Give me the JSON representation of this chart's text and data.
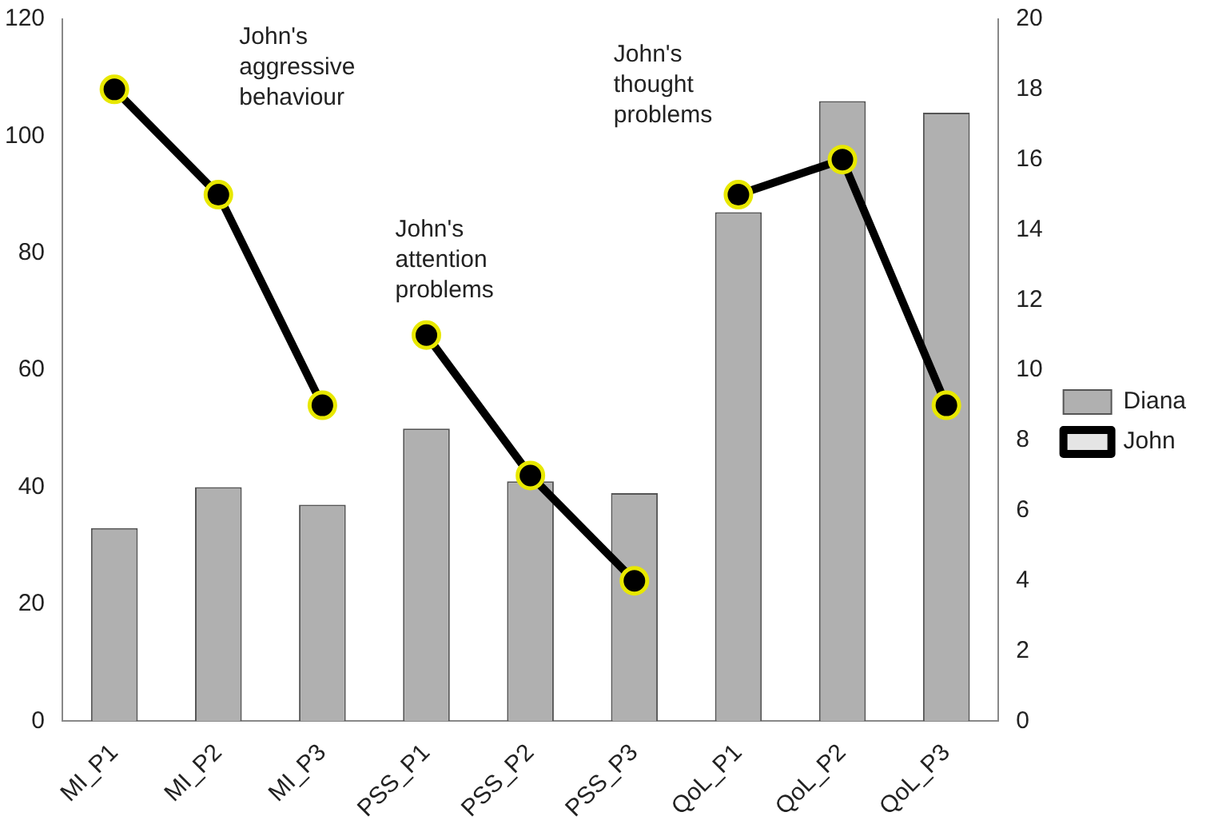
{
  "chart_data": {
    "type": "bar",
    "categories": [
      "MI_P1",
      "MI_P2",
      "MI_P3",
      "PSS_P1",
      "PSS_P2",
      "PSS_P3",
      "QoL_P1",
      "QoL_P2",
      "QoL_P3"
    ],
    "series": [
      {
        "name": "Diana",
        "color": "#b0b0b0",
        "values": [
          33,
          40,
          37,
          50,
          41,
          39,
          87,
          106,
          104
        ]
      },
      {
        "name": "John",
        "type": "line",
        "axis": "y2",
        "color": "#000000",
        "values": [
          18,
          15,
          9,
          null,
          null,
          null,
          null,
          null,
          null
        ]
      },
      {
        "type": "line",
        "axis": "y2",
        "color": "#000000",
        "values": [
          null,
          null,
          null,
          11,
          7,
          4,
          null,
          null,
          null
        ]
      },
      {
        "type": "line",
        "axis": "y2",
        "color": "#000000",
        "values": [
          null,
          null,
          null,
          null,
          null,
          null,
          15,
          16,
          9
        ]
      }
    ],
    "ylim": [
      0,
      120
    ],
    "yticks": [
      0,
      20,
      40,
      60,
      80,
      100,
      120
    ],
    "y2lim": [
      0,
      20
    ],
    "y2ticks": [
      0,
      2,
      4,
      6,
      8,
      10,
      12,
      14,
      16,
      18,
      20
    ],
    "annotations": [
      "John's aggressive behaviour",
      "John's attention problems",
      "John's thought problems"
    ],
    "marker": "circle",
    "grid": false,
    "legend": "right"
  }
}
